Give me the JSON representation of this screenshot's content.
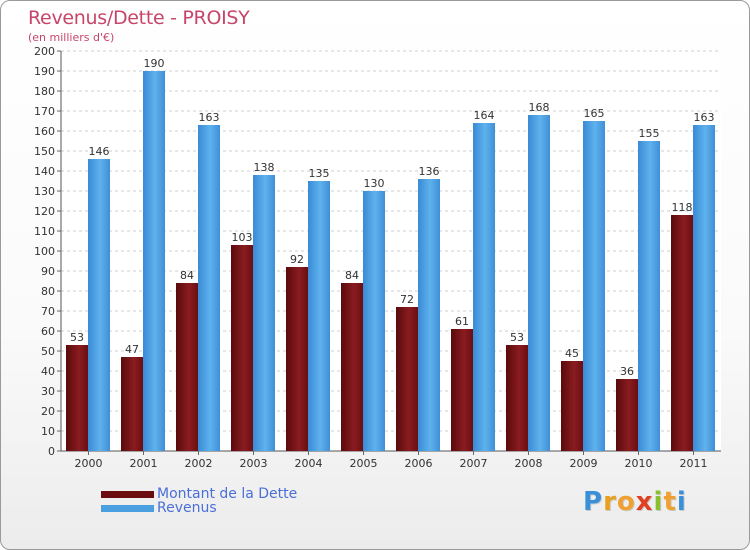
{
  "header": {
    "title": "Revenus/Dette - PROISY",
    "subtitle": "(en milliers d'€)"
  },
  "chart_data": {
    "type": "bar",
    "title": "Revenus/Dette - PROISY",
    "subtitle": "(en milliers d'€)",
    "xlabel": "",
    "ylabel": "",
    "ylim": [
      0,
      200
    ],
    "ytick_step": 10,
    "grid": true,
    "legend_position": "bottom-left",
    "categories": [
      "2000",
      "2001",
      "2002",
      "2003",
      "2004",
      "2005",
      "2006",
      "2007",
      "2008",
      "2009",
      "2010",
      "2011"
    ],
    "series": [
      {
        "name": "Montant de la Dette",
        "color": "#7a1216",
        "values": [
          53,
          47,
          84,
          103,
          92,
          84,
          72,
          61,
          53,
          45,
          36,
          118
        ]
      },
      {
        "name": "Revenus",
        "color": "#4a9fe0",
        "values": [
          146,
          190,
          163,
          138,
          135,
          130,
          136,
          164,
          168,
          165,
          155,
          163
        ]
      }
    ]
  },
  "legend": {
    "items": [
      {
        "label": "Montant de la Dette",
        "color": "#6a0c10"
      },
      {
        "label": "Revenus",
        "color": "#4a9fe0"
      }
    ]
  },
  "logo": {
    "letters": [
      "P",
      "r",
      "o",
      "x",
      "i",
      "t",
      "i"
    ],
    "colors": [
      "#3a8fd8",
      "#e8a020",
      "#f0a030",
      "#e04020",
      "#8ac030",
      "#f0a030",
      "#3a8fd8"
    ]
  }
}
